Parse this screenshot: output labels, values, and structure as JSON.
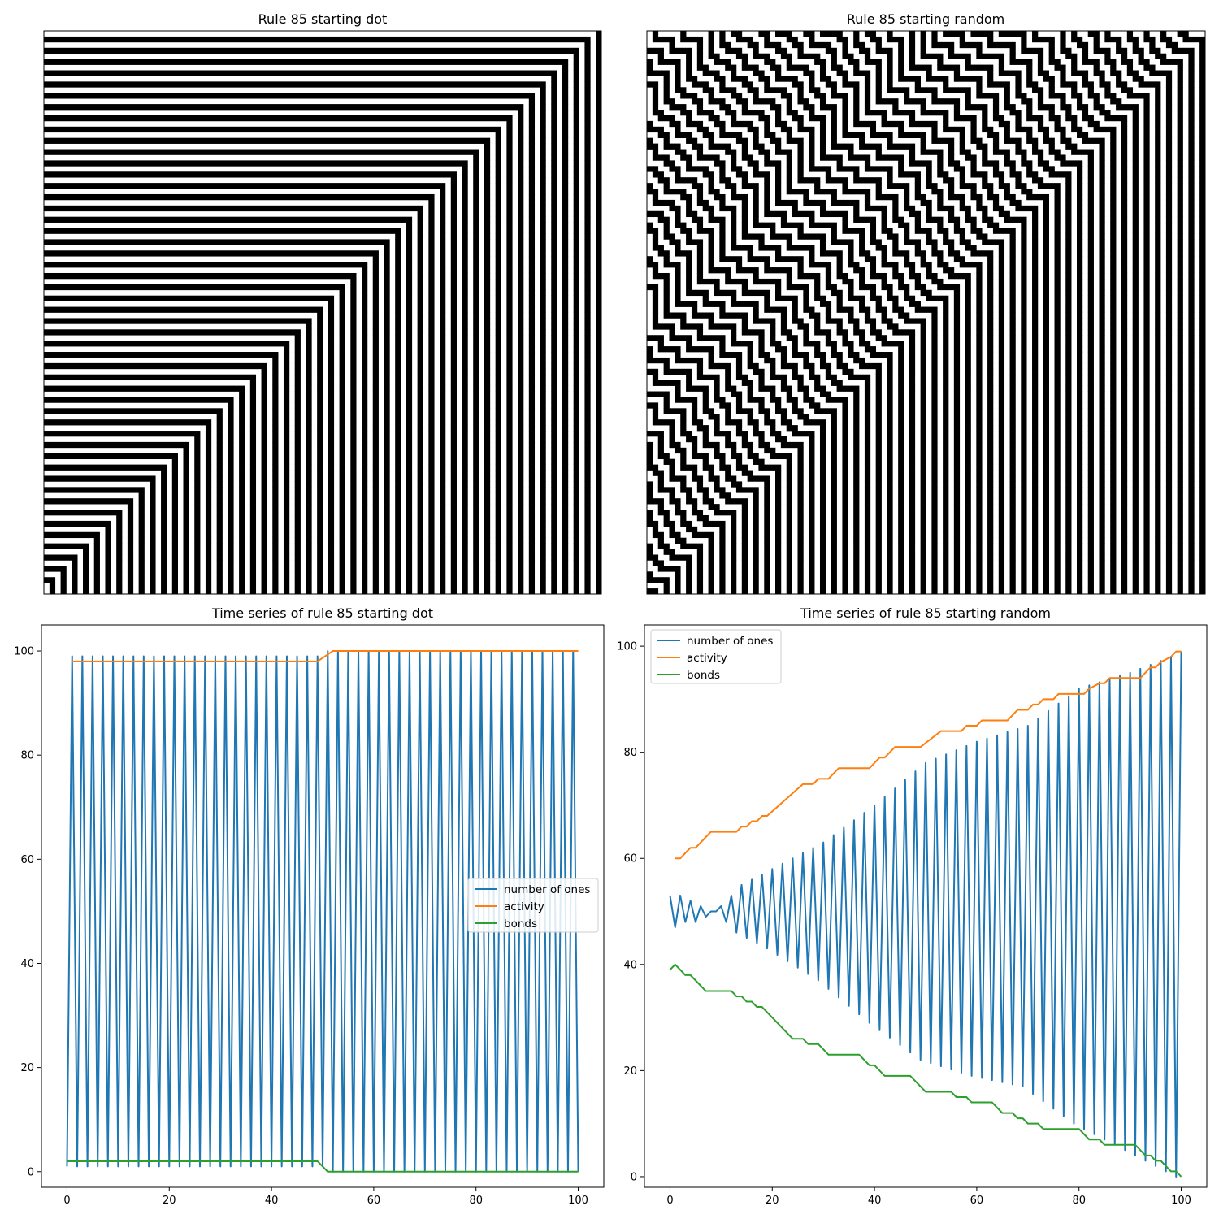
{
  "chart_data": [
    {
      "type": "heatmap",
      "title": "Rule 85 starting dot",
      "rule": 85,
      "cells": [
        100,
        100
      ],
      "initial_state": "single one at the right edge",
      "colormap": {
        "one": "#000000",
        "zero": "#ffffff"
      },
      "axes_ticks": "hidden"
    },
    {
      "type": "heatmap",
      "title": "Rule 85 starting random",
      "rule": 85,
      "cells": [
        100,
        100
      ],
      "initial_state": "random",
      "colormap": {
        "one": "#000000",
        "zero": "#ffffff"
      },
      "axes_ticks": "hidden"
    },
    {
      "type": "line",
      "title": "Time series of rule 85 starting dot",
      "xlim": [
        -5,
        105
      ],
      "ylim": [
        -3,
        105
      ],
      "xticks": [
        "0",
        "20",
        "40",
        "60",
        "80",
        "100"
      ],
      "yticks": [
        "0",
        "20",
        "40",
        "60",
        "80",
        "100"
      ],
      "legend": "center-right",
      "series": [
        {
          "name": "number of ones",
          "color": "#1f77b4",
          "pattern": "alternating",
          "t": [
            0,
            100
          ],
          "even_steps": {
            "until_step_50": 1,
            "from_step_52": 0
          },
          "odd_steps": {
            "until_step_49": 99,
            "from_step_51": 100
          }
        },
        {
          "name": "activity",
          "color": "#ff7f0e",
          "points": [
            [
              1,
              98
            ],
            [
              49,
              98
            ],
            [
              52,
              100
            ],
            [
              100,
              100
            ]
          ]
        },
        {
          "name": "bonds",
          "color": "#2ca02c",
          "points": [
            [
              0,
              2
            ],
            [
              49,
              2
            ],
            [
              51,
              0
            ],
            [
              100,
              0
            ]
          ]
        }
      ]
    },
    {
      "type": "line",
      "title": "Time series of rule 85 starting random",
      "xlim": [
        -5,
        105
      ],
      "ylim": [
        -2,
        104
      ],
      "xticks": [
        "0",
        "20",
        "40",
        "60",
        "80",
        "100"
      ],
      "yticks": [
        "0",
        "20",
        "40",
        "60",
        "80",
        "100"
      ],
      "legend": "top-left",
      "series": [
        {
          "name": "number of ones",
          "color": "#1f77b4",
          "pattern": "alternating",
          "t": [
            0,
            100
          ],
          "even_steps": [
            [
              0,
              53
            ],
            [
              2,
              53
            ],
            [
              4,
              52
            ],
            [
              6,
              51
            ],
            [
              8,
              50
            ],
            [
              10,
              51
            ],
            [
              14,
              55
            ],
            [
              20,
              58
            ],
            [
              30,
              63
            ],
            [
              40,
              70
            ],
            [
              50,
              78
            ],
            [
              60,
              82
            ],
            [
              70,
              85
            ],
            [
              80,
              92
            ],
            [
              90,
              95
            ],
            [
              98,
              98
            ],
            [
              100,
              99
            ]
          ],
          "odd_steps": [
            [
              1,
              47
            ],
            [
              3,
              48
            ],
            [
              5,
              48
            ],
            [
              7,
              49
            ],
            [
              9,
              50
            ],
            [
              13,
              46
            ],
            [
              19,
              43
            ],
            [
              29,
              37
            ],
            [
              39,
              29
            ],
            [
              49,
              22
            ],
            [
              59,
              19
            ],
            [
              69,
              17
            ],
            [
              79,
              10
            ],
            [
              89,
              5
            ],
            [
              99,
              0
            ]
          ]
        },
        {
          "name": "activity",
          "color": "#ff7f0e",
          "points": [
            [
              1,
              60
            ],
            [
              2,
              60
            ],
            [
              3,
              61
            ],
            [
              4,
              62
            ],
            [
              5,
              62
            ],
            [
              6,
              63
            ],
            [
              7,
              64
            ],
            [
              8,
              65
            ],
            [
              13,
              65
            ],
            [
              14,
              66
            ],
            [
              15,
              66
            ],
            [
              16,
              67
            ],
            [
              17,
              67
            ],
            [
              18,
              68
            ],
            [
              19,
              68
            ],
            [
              26,
              74
            ],
            [
              28,
              74
            ],
            [
              29,
              75
            ],
            [
              31,
              75
            ],
            [
              33,
              77
            ],
            [
              39,
              77
            ],
            [
              41,
              79
            ],
            [
              42,
              79
            ],
            [
              44,
              81
            ],
            [
              49,
              81
            ],
            [
              53,
              84
            ],
            [
              57,
              84
            ],
            [
              58,
              85
            ],
            [
              60,
              85
            ],
            [
              61,
              86
            ],
            [
              66,
              86
            ],
            [
              68,
              88
            ],
            [
              70,
              88
            ],
            [
              71,
              89
            ],
            [
              72,
              89
            ],
            [
              73,
              90
            ],
            [
              75,
              90
            ],
            [
              76,
              91
            ],
            [
              81,
              91
            ],
            [
              82,
              92
            ],
            [
              84,
              93
            ],
            [
              85,
              93
            ],
            [
              86,
              94
            ],
            [
              92,
              94
            ],
            [
              94,
              96
            ],
            [
              95,
              96
            ],
            [
              96,
              97
            ],
            [
              98,
              98
            ],
            [
              99,
              99
            ],
            [
              100,
              99
            ]
          ]
        },
        {
          "name": "bonds",
          "color": "#2ca02c",
          "points": [
            [
              0,
              39
            ],
            [
              1,
              40
            ],
            [
              3,
              38
            ],
            [
              4,
              38
            ],
            [
              7,
              35
            ],
            [
              12,
              35
            ],
            [
              13,
              34
            ],
            [
              14,
              34
            ],
            [
              15,
              33
            ],
            [
              16,
              33
            ],
            [
              17,
              32
            ],
            [
              18,
              32
            ],
            [
              24,
              26
            ],
            [
              26,
              26
            ],
            [
              27,
              25
            ],
            [
              29,
              25
            ],
            [
              31,
              23
            ],
            [
              37,
              23
            ],
            [
              39,
              21
            ],
            [
              40,
              21
            ],
            [
              42,
              19
            ],
            [
              47,
              19
            ],
            [
              50,
              16
            ],
            [
              55,
              16
            ],
            [
              56,
              15
            ],
            [
              58,
              15
            ],
            [
              59,
              14
            ],
            [
              63,
              14
            ],
            [
              65,
              12
            ],
            [
              67,
              12
            ],
            [
              68,
              11
            ],
            [
              69,
              11
            ],
            [
              70,
              10
            ],
            [
              72,
              10
            ],
            [
              73,
              9
            ],
            [
              80,
              9
            ],
            [
              82,
              7
            ],
            [
              84,
              7
            ],
            [
              85,
              6
            ],
            [
              91,
              6
            ],
            [
              93,
              4
            ],
            [
              94,
              4
            ],
            [
              95,
              3
            ],
            [
              96,
              3
            ],
            [
              98,
              1
            ],
            [
              99,
              1
            ],
            [
              100,
              0
            ]
          ]
        }
      ]
    }
  ]
}
